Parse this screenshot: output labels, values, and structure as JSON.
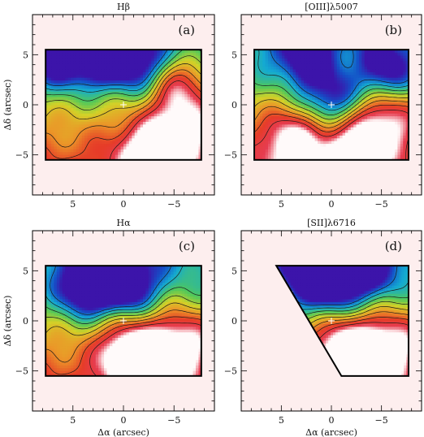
{
  "chart_data": [
    {
      "type": "heatmap",
      "title": "Hβ",
      "panel_label": "(a)",
      "xlabel": "",
      "ylabel": "Δδ (arcsec)",
      "xlim": [
        9,
        -9
      ],
      "ylim": [
        -9,
        9
      ],
      "x_ticks": [
        "5",
        "0",
        "−5"
      ],
      "y_ticks": [
        "5",
        "0",
        "−5"
      ],
      "x_tick_values": [
        5,
        0,
        -5
      ],
      "y_tick_values": [
        5,
        0,
        -5
      ],
      "data_extent": {
        "x": [
          7.7,
          -7.7
        ],
        "y": [
          -5.5,
          5.5
        ]
      },
      "footprint": "rectangle",
      "center_marker": [
        0,
        0
      ],
      "hot_spots": [
        [
          -2.5,
          -4.5
        ],
        [
          -5.5,
          2.0
        ],
        [
          -6.0,
          -2.5
        ]
      ],
      "cold_spots": [
        [
          2.5,
          4.5
        ],
        [
          -1.5,
          4.0
        ],
        [
          6.5,
          4.5
        ]
      ],
      "colorscale": "blue-green-yellow-orange-red-white"
    },
    {
      "type": "heatmap",
      "title": "[OIII]λ5007",
      "panel_label": "(b)",
      "xlabel": "",
      "ylabel": "",
      "xlim": [
        9,
        -9
      ],
      "ylim": [
        -9,
        9
      ],
      "x_ticks": [
        "5",
        "0",
        "−5"
      ],
      "y_ticks": [
        "5",
        "0",
        "−5"
      ],
      "x_tick_values": [
        5,
        0,
        -5
      ],
      "y_tick_values": [
        5,
        0,
        -5
      ],
      "data_extent": {
        "x": [
          7.7,
          -7.7
        ],
        "y": [
          -5.5,
          5.5
        ]
      },
      "footprint": "rectangle",
      "center_marker": [
        0,
        0
      ],
      "hot_spots": [
        [
          -2.0,
          -4.5
        ],
        [
          -5.5,
          -1.5
        ],
        [
          4.0,
          -3.5
        ]
      ],
      "cold_spots": [
        [
          0.0,
          0.5
        ],
        [
          2.5,
          4.5
        ],
        [
          -5.5,
          3.5
        ]
      ],
      "colorscale": "blue-green-yellow-orange-red-white"
    },
    {
      "type": "heatmap",
      "title": "Hα",
      "panel_label": "(c)",
      "xlabel": "Δα (arcsec)",
      "ylabel": "Δδ (arcsec)",
      "xlim": [
        9,
        -9
      ],
      "ylim": [
        -9,
        9
      ],
      "x_ticks": [
        "5",
        "0",
        "−5"
      ],
      "y_ticks": [
        "5",
        "0",
        "−5"
      ],
      "x_tick_values": [
        5,
        0,
        -5
      ],
      "y_tick_values": [
        5,
        0,
        -5
      ],
      "data_extent": {
        "x": [
          7.7,
          -7.7
        ],
        "y": [
          -5.5,
          5.5
        ]
      },
      "footprint": "rectangle",
      "center_marker": [
        0,
        0
      ],
      "hot_spots": [
        [
          -2.5,
          -4.0
        ],
        [
          -6.0,
          -2.0
        ],
        [
          -0.5,
          -3.0
        ]
      ],
      "cold_spots": [
        [
          1.8,
          4.5
        ],
        [
          -0.5,
          3.5
        ],
        [
          4.0,
          3.0
        ]
      ],
      "colorscale": "blue-green-yellow-orange-red-white"
    },
    {
      "type": "heatmap",
      "title": "[SII]λ6716",
      "panel_label": "(d)",
      "xlabel": "Δα (arcsec)",
      "ylabel": "",
      "xlim": [
        9,
        -9
      ],
      "ylim": [
        -9,
        9
      ],
      "x_ticks": [
        "5",
        "0",
        "−5"
      ],
      "y_ticks": [
        "5",
        "0",
        "−5"
      ],
      "x_tick_values": [
        5,
        0,
        -5
      ],
      "y_tick_values": [
        5,
        0,
        -5
      ],
      "data_extent": {
        "x": [
          5.5,
          -7.7
        ],
        "y": [
          -5.5,
          5.5
        ]
      },
      "footprint": "trapezoid",
      "center_marker": [
        0,
        0
      ],
      "hot_spots": [
        [
          -3.0,
          -4.5
        ],
        [
          -6.0,
          -2.0
        ],
        [
          -1.0,
          -2.5
        ]
      ],
      "cold_spots": [
        [
          2.5,
          4.5
        ],
        [
          0.0,
          3.5
        ],
        [
          -3.5,
          5.0
        ]
      ],
      "colorscale": "blue-green-yellow-orange-red-white"
    }
  ]
}
